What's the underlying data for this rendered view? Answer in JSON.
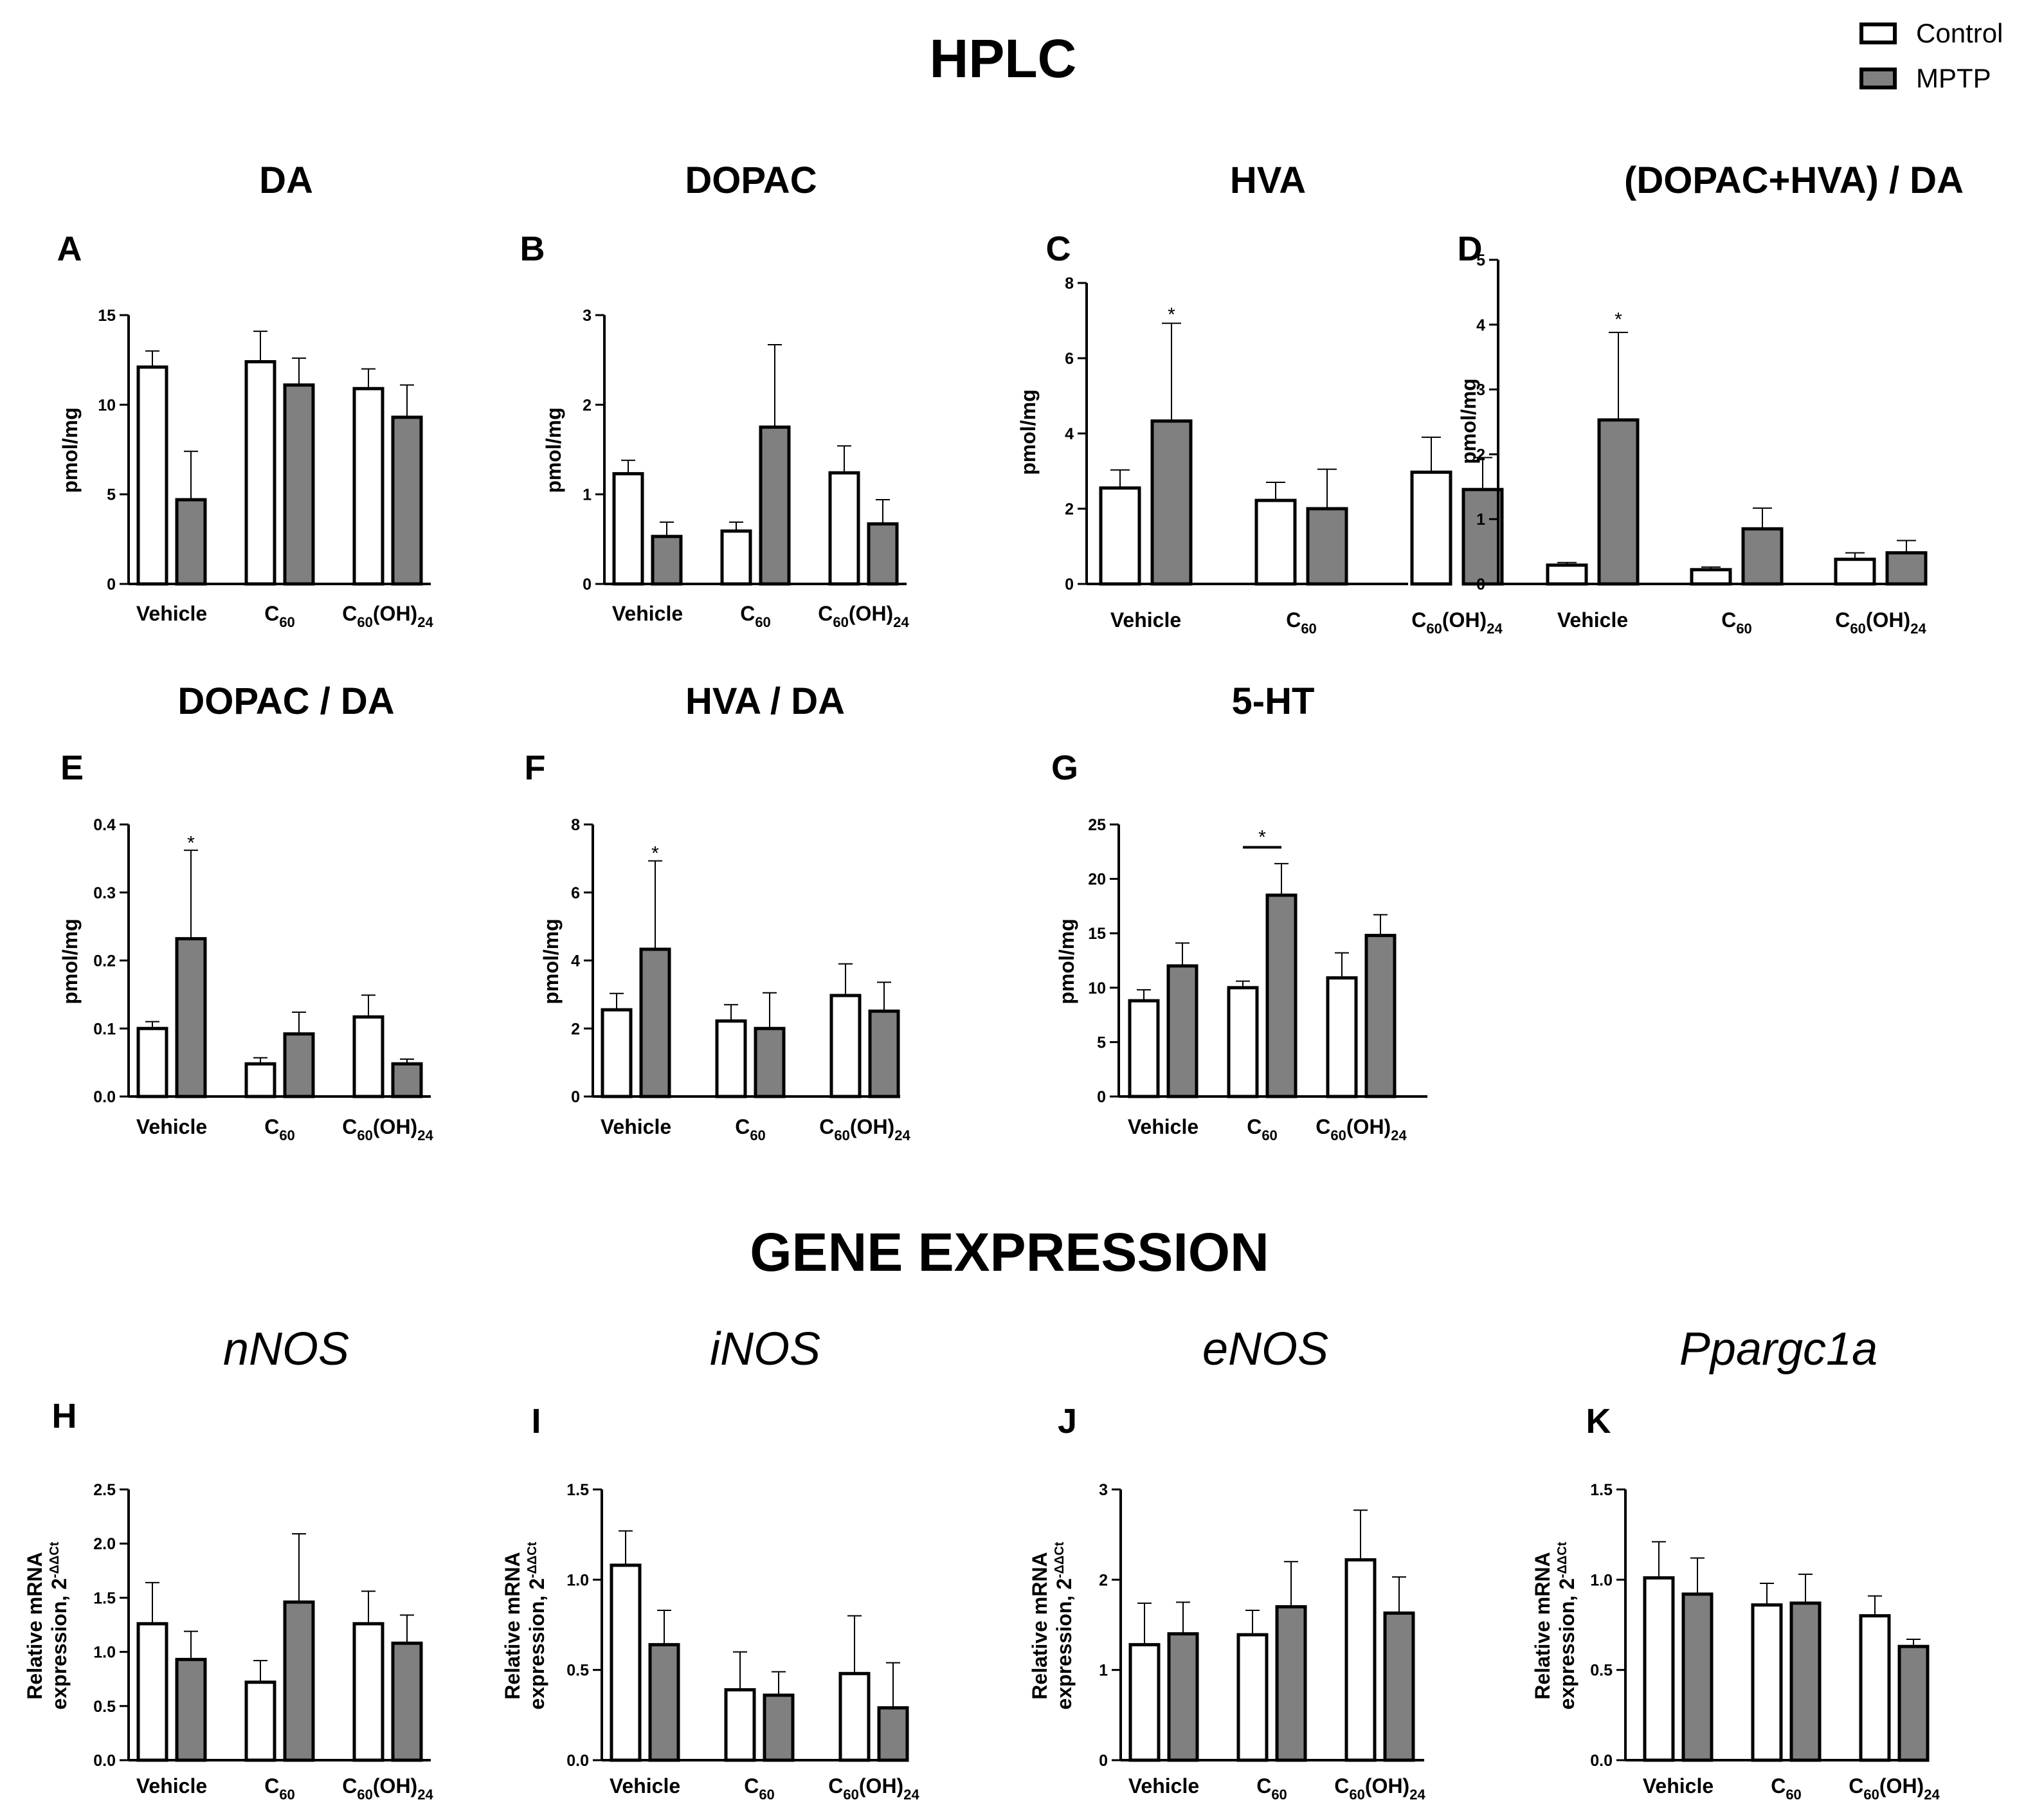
{
  "headings": {
    "hplc": "HPLC",
    "gene_expression": "GENE EXPRESSION"
  },
  "legend": [
    {
      "label": "Control",
      "color": "#ffffff"
    },
    {
      "label": "MPTP",
      "color": "#808080"
    }
  ],
  "colors": {
    "control": "#ffffff",
    "mptp": "#808080",
    "axis": "#000000"
  },
  "chart_data": [
    {
      "id": "A",
      "type": "bar",
      "title": "DA",
      "ylabel": "pmol/mg",
      "ylim": [
        0,
        15
      ],
      "yticks": [
        0,
        5,
        10,
        15
      ],
      "tick_labels": [
        "0",
        "5",
        "10",
        "15"
      ],
      "categories": [
        "Vehicle",
        "C60",
        "C60(OH)24"
      ],
      "series": [
        {
          "name": "Control",
          "values": [
            12.1,
            12.4,
            10.9
          ],
          "errors": [
            0.9,
            1.7,
            1.1
          ]
        },
        {
          "name": "MPTP",
          "values": [
            4.7,
            11.1,
            9.3
          ],
          "errors": [
            2.7,
            1.5,
            1.8
          ]
        }
      ],
      "annotations": []
    },
    {
      "id": "B",
      "type": "bar",
      "title": "DOPAC",
      "ylabel": "pmol/mg",
      "ylim": [
        0,
        3
      ],
      "yticks": [
        0,
        1,
        2,
        3
      ],
      "tick_labels": [
        "0",
        "1",
        "2",
        "3"
      ],
      "categories": [
        "Vehicle",
        "C60",
        "C60(OH)24"
      ],
      "series": [
        {
          "name": "Control",
          "values": [
            1.23,
            0.59,
            1.24
          ],
          "errors": [
            0.15,
            0.1,
            0.3
          ]
        },
        {
          "name": "MPTP",
          "values": [
            0.53,
            1.75,
            0.67
          ],
          "errors": [
            0.16,
            0.92,
            0.27
          ]
        }
      ],
      "annotations": []
    },
    {
      "id": "C",
      "type": "bar",
      "title": "HVA",
      "ylabel": "pmol/mg",
      "ylim": [
        0,
        8
      ],
      "yticks": [
        0,
        2,
        4,
        6,
        8
      ],
      "tick_labels": [
        "0",
        "2",
        "4",
        "6",
        "8"
      ],
      "categories": [
        "Vehicle",
        "C60",
        "C60(OH)24"
      ],
      "series": [
        {
          "name": "Control",
          "values": [
            2.55,
            2.22,
            2.97
          ],
          "errors": [
            0.48,
            0.48,
            0.93
          ]
        },
        {
          "name": "MPTP",
          "values": [
            4.33,
            2.0,
            2.51
          ],
          "errors": [
            2.6,
            1.05,
            0.85
          ]
        }
      ],
      "annotations": [
        {
          "text": "*",
          "category": 0,
          "series": 1,
          "value": 7.2
        }
      ]
    },
    {
      "id": "D",
      "type": "bar",
      "title": "(DOPAC+HVA) / DA",
      "ylabel": "pmol/mg",
      "ylim": [
        0,
        5
      ],
      "yticks": [
        0,
        1,
        2,
        3,
        4,
        5
      ],
      "tick_labels": [
        "0",
        "1",
        "2",
        "3",
        "4",
        "5"
      ],
      "categories": [
        "Vehicle",
        "C60",
        "C60(OH)24"
      ],
      "series": [
        {
          "name": "Control",
          "values": [
            0.29,
            0.22,
            0.38
          ],
          "errors": [
            0.04,
            0.04,
            0.1
          ]
        },
        {
          "name": "MPTP",
          "values": [
            2.53,
            0.85,
            0.48
          ],
          "errors": [
            1.35,
            0.32,
            0.19
          ]
        }
      ],
      "annotations": [
        {
          "text": "*",
          "category": 0,
          "series": 1,
          "value": 4.1
        }
      ]
    },
    {
      "id": "E",
      "type": "bar",
      "title": "DOPAC / DA",
      "ylabel": "pmol/mg",
      "ylim": [
        0,
        0.4
      ],
      "yticks": [
        0,
        0.1,
        0.2,
        0.3,
        0.4
      ],
      "tick_labels": [
        "0.0",
        "0.1",
        "0.2",
        "0.3",
        "0.4"
      ],
      "categories": [
        "Vehicle",
        "C60",
        "C60(OH)24"
      ],
      "series": [
        {
          "name": "Control",
          "values": [
            0.1,
            0.048,
            0.117
          ],
          "errors": [
            0.01,
            0.009,
            0.032
          ]
        },
        {
          "name": "MPTP",
          "values": [
            0.232,
            0.092,
            0.048
          ],
          "errors": [
            0.13,
            0.032,
            0.007
          ]
        }
      ],
      "annotations": [
        {
          "text": "*",
          "category": 0,
          "series": 1,
          "value": 0.375
        }
      ]
    },
    {
      "id": "F",
      "type": "bar",
      "title": "HVA / DA",
      "ylabel": "pmol/mg",
      "ylim": [
        0,
        8
      ],
      "yticks": [
        0,
        2,
        4,
        6,
        8
      ],
      "tick_labels": [
        "0",
        "2",
        "4",
        "6",
        "8"
      ],
      "categories": [
        "Vehicle",
        "C60",
        "C60(OH)24"
      ],
      "series": [
        {
          "name": "Control",
          "values": [
            2.55,
            2.22,
            2.97
          ],
          "errors": [
            0.48,
            0.48,
            0.93
          ]
        },
        {
          "name": "MPTP",
          "values": [
            4.33,
            2.0,
            2.51
          ],
          "errors": [
            2.6,
            1.05,
            0.85
          ]
        }
      ],
      "annotations": [
        {
          "text": "*",
          "category": 0,
          "series": 1,
          "value": 7.2
        }
      ]
    },
    {
      "id": "G",
      "type": "bar",
      "title": "5-HT",
      "ylabel": "pmol/mg",
      "ylim": [
        0,
        25
      ],
      "yticks": [
        0,
        5,
        10,
        15,
        20,
        25
      ],
      "tick_labels": [
        "0",
        "5",
        "10",
        "15",
        "20",
        "25"
      ],
      "categories": [
        "Vehicle",
        "C60",
        "C60(OH)24"
      ],
      "series": [
        {
          "name": "Control",
          "values": [
            8.8,
            10.0,
            10.9
          ],
          "errors": [
            1.0,
            0.6,
            2.3
          ]
        },
        {
          "name": "MPTP",
          "values": [
            12.0,
            18.5,
            14.8
          ],
          "errors": [
            2.1,
            2.9,
            1.9
          ]
        }
      ],
      "annotations": [
        {
          "text": "*",
          "category": 1,
          "bracket": true,
          "value": 22.9
        }
      ]
    },
    {
      "id": "H",
      "type": "bar",
      "title": "nNOS",
      "ylabel": [
        "Relative mRNA",
        "expression, 2",
        "-ΔΔCt"
      ],
      "ylim": [
        0,
        2.5
      ],
      "yticks": [
        0,
        0.5,
        1,
        1.5,
        2,
        2.5
      ],
      "tick_labels": [
        "0.0",
        "0.5",
        "1.0",
        "1.5",
        "2.0",
        "2.5"
      ],
      "categories": [
        "Vehicle",
        "C60",
        "C60(OH)24"
      ],
      "series": [
        {
          "name": "Control",
          "values": [
            1.26,
            0.72,
            1.26
          ],
          "errors": [
            0.38,
            0.2,
            0.3
          ]
        },
        {
          "name": "MPTP",
          "values": [
            0.93,
            1.46,
            1.08
          ],
          "errors": [
            0.26,
            0.63,
            0.26
          ]
        }
      ],
      "annotations": []
    },
    {
      "id": "I",
      "type": "bar",
      "title": "iNOS",
      "ylabel": [
        "Relative mRNA",
        "expression, 2",
        "-ΔΔCt"
      ],
      "ylim": [
        0,
        1.5
      ],
      "yticks": [
        0,
        0.5,
        1,
        1.5
      ],
      "tick_labels": [
        "0.0",
        "0.5",
        "1.0",
        "1.5"
      ],
      "categories": [
        "Vehicle",
        "C60",
        "C60(OH)24"
      ],
      "series": [
        {
          "name": "Control",
          "values": [
            1.08,
            0.39,
            0.48
          ],
          "errors": [
            0.19,
            0.21,
            0.32
          ]
        },
        {
          "name": "MPTP",
          "values": [
            0.64,
            0.36,
            0.29
          ],
          "errors": [
            0.19,
            0.13,
            0.25
          ]
        }
      ],
      "annotations": []
    },
    {
      "id": "J",
      "type": "bar",
      "title": "eNOS",
      "ylabel": [
        "Relative mRNA",
        "expression, 2",
        "-ΔΔCt"
      ],
      "ylim": [
        0,
        3
      ],
      "yticks": [
        0,
        1,
        2,
        3
      ],
      "tick_labels": [
        "0",
        "1",
        "2",
        "3"
      ],
      "categories": [
        "Vehicle",
        "C60",
        "C60(OH)24"
      ],
      "series": [
        {
          "name": "Control",
          "values": [
            1.28,
            1.39,
            2.22
          ],
          "errors": [
            0.46,
            0.27,
            0.55
          ]
        },
        {
          "name": "MPTP",
          "values": [
            1.4,
            1.7,
            1.63
          ],
          "errors": [
            0.35,
            0.5,
            0.4
          ]
        }
      ],
      "annotations": []
    },
    {
      "id": "K",
      "type": "bar",
      "title": "Ppargc1a",
      "ylabel": [
        "Relative mRNA",
        "expression, 2",
        "-ΔΔCt"
      ],
      "ylim": [
        0,
        1.5
      ],
      "yticks": [
        0,
        0.5,
        1,
        1.5
      ],
      "tick_labels": [
        "0.0",
        "0.5",
        "1.0",
        "1.5"
      ],
      "categories": [
        "Vehicle",
        "C60",
        "C60(OH)24"
      ],
      "series": [
        {
          "name": "Control",
          "values": [
            1.01,
            0.86,
            0.8
          ],
          "errors": [
            0.2,
            0.12,
            0.11
          ]
        },
        {
          "name": "MPTP",
          "values": [
            0.92,
            0.87,
            0.63
          ],
          "errors": [
            0.2,
            0.16,
            0.04
          ]
        }
      ],
      "annotations": []
    }
  ]
}
